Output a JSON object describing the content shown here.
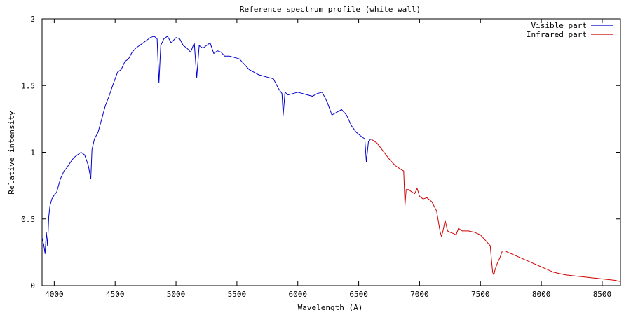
{
  "chart_data": {
    "type": "line",
    "title": "Reference spectrum profile (white wall)",
    "xlabel": "Wavelength (A)",
    "ylabel": "Relative intensity",
    "xlim": [
      3900,
      8650
    ],
    "ylim": [
      0,
      2
    ],
    "x_ticks": [
      "4000",
      "4500",
      "5000",
      "5500",
      "6000",
      "6500",
      "7000",
      "7500",
      "8000",
      "8500"
    ],
    "y_ticks": [
      "0",
      "0.5",
      "1",
      "1.5",
      "2"
    ],
    "grid": false,
    "legend_position": "top-right",
    "series": [
      {
        "name": "Visible part",
        "color": "#0000cc",
        "x": [
          3900,
          3915,
          3925,
          3935,
          3945,
          3955,
          3965,
          3980,
          4000,
          4020,
          4050,
          4080,
          4100,
          4130,
          4160,
          4190,
          4220,
          4250,
          4280,
          4300,
          4310,
          4330,
          4360,
          4390,
          4420,
          4450,
          4480,
          4500,
          4520,
          4550,
          4580,
          4610,
          4640,
          4670,
          4700,
          4730,
          4760,
          4790,
          4820,
          4845,
          4860,
          4875,
          4900,
          4930,
          4960,
          5000,
          5030,
          5060,
          5090,
          5120,
          5150,
          5170,
          5190,
          5220,
          5250,
          5280,
          5310,
          5340,
          5370,
          5400,
          5440,
          5480,
          5520,
          5560,
          5600,
          5640,
          5680,
          5720,
          5760,
          5800,
          5840,
          5870,
          5880,
          5895,
          5920,
          5960,
          6000,
          6040,
          6080,
          6120,
          6160,
          6200,
          6240,
          6280,
          6320,
          6360,
          6400,
          6440,
          6480,
          6520,
          6550,
          6563,
          6580,
          6600
        ],
        "y": [
          0.36,
          0.3,
          0.24,
          0.4,
          0.3,
          0.52,
          0.6,
          0.65,
          0.68,
          0.7,
          0.8,
          0.86,
          0.88,
          0.92,
          0.96,
          0.98,
          1.0,
          0.98,
          0.9,
          0.8,
          1.02,
          1.1,
          1.15,
          1.25,
          1.35,
          1.42,
          1.5,
          1.55,
          1.6,
          1.62,
          1.68,
          1.7,
          1.75,
          1.78,
          1.8,
          1.82,
          1.84,
          1.86,
          1.87,
          1.85,
          1.52,
          1.8,
          1.85,
          1.87,
          1.82,
          1.86,
          1.85,
          1.8,
          1.78,
          1.75,
          1.82,
          1.56,
          1.8,
          1.78,
          1.8,
          1.82,
          1.74,
          1.76,
          1.75,
          1.72,
          1.72,
          1.71,
          1.7,
          1.66,
          1.62,
          1.6,
          1.58,
          1.57,
          1.56,
          1.55,
          1.48,
          1.44,
          1.28,
          1.45,
          1.43,
          1.44,
          1.45,
          1.44,
          1.43,
          1.42,
          1.44,
          1.45,
          1.38,
          1.28,
          1.3,
          1.32,
          1.28,
          1.2,
          1.15,
          1.12,
          1.1,
          0.93,
          1.08,
          1.1
        ]
      },
      {
        "name": "Infrared part",
        "color": "#cc0000",
        "x": [
          6600,
          6650,
          6700,
          6750,
          6800,
          6850,
          6870,
          6880,
          6890,
          6910,
          6940,
          6960,
          6980,
          7000,
          7030,
          7060,
          7100,
          7140,
          7170,
          7180,
          7190,
          7210,
          7230,
          7250,
          7280,
          7300,
          7320,
          7350,
          7400,
          7450,
          7500,
          7550,
          7580,
          7600,
          7610,
          7620,
          7640,
          7660,
          7680,
          7700,
          7750,
          7800,
          7850,
          7900,
          7950,
          8000,
          8050,
          8100,
          8150,
          8200,
          8250,
          8300,
          8350,
          8400,
          8450,
          8500,
          8550,
          8600,
          8650
        ],
        "y": [
          1.1,
          1.07,
          1.01,
          0.95,
          0.9,
          0.87,
          0.86,
          0.6,
          0.72,
          0.72,
          0.7,
          0.69,
          0.73,
          0.67,
          0.65,
          0.66,
          0.63,
          0.56,
          0.4,
          0.37,
          0.4,
          0.49,
          0.41,
          0.4,
          0.39,
          0.38,
          0.43,
          0.41,
          0.41,
          0.4,
          0.38,
          0.33,
          0.3,
          0.1,
          0.08,
          0.12,
          0.17,
          0.21,
          0.26,
          0.26,
          0.24,
          0.22,
          0.2,
          0.18,
          0.16,
          0.14,
          0.12,
          0.1,
          0.09,
          0.08,
          0.075,
          0.07,
          0.065,
          0.06,
          0.055,
          0.05,
          0.045,
          0.04,
          0.03
        ]
      }
    ]
  }
}
